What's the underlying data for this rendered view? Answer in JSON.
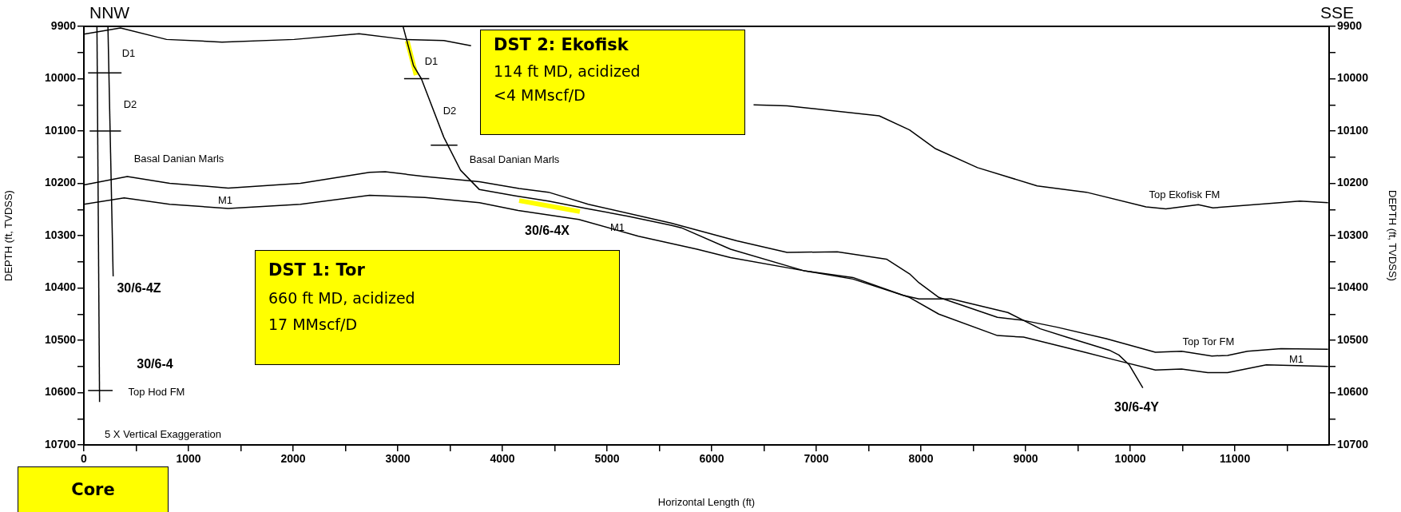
{
  "chart_data": {
    "type": "line",
    "xlabel": "Horizontal Length (ft)",
    "ylabel": "DEPTH (ft, TVDSS)",
    "y2label": "DEPTH (ft, TVDSS)",
    "xlim": [
      0,
      11900
    ],
    "ylim": [
      10700,
      9900
    ],
    "y2lim": [
      10700,
      9900
    ],
    "xticks": [
      0,
      {
        "value": 500,
        "label": null
      },
      1000,
      {
        "value": 1500,
        "label": null
      },
      2000,
      {
        "value": 2500,
        "label": null
      },
      3000,
      {
        "value": 3500,
        "label": null
      },
      4000,
      {
        "value": 4500,
        "label": null
      },
      5000,
      {
        "value": 5500,
        "label": null
      },
      6000,
      {
        "value": 6500,
        "label": null
      },
      7000,
      {
        "value": 7500,
        "label": null
      },
      8000,
      {
        "value": 8500,
        "label": null
      },
      9000,
      {
        "value": 9500,
        "label": null
      },
      10000,
      {
        "value": 10500,
        "label": null
      },
      11000,
      {
        "value": 11500,
        "label": null
      }
    ],
    "yticks": [
      9900,
      {
        "value": 9950,
        "label": null
      },
      10000,
      {
        "value": 10050,
        "label": null
      },
      10100,
      {
        "value": 10150,
        "label": null
      },
      10200,
      {
        "value": 10250,
        "label": null
      },
      10300,
      {
        "value": 10350,
        "label": null
      },
      10400,
      {
        "value": 10450,
        "label": null
      },
      10500,
      {
        "value": 10550,
        "label": null
      },
      10600,
      {
        "value": 10650,
        "label": null
      },
      10700
    ],
    "y2ticks": [
      9900,
      {
        "value": 9950,
        "label": null
      },
      10000,
      {
        "value": 10050,
        "label": null
      },
      10100,
      {
        "value": 10150,
        "label": null
      },
      10200,
      {
        "value": 10250,
        "label": null
      },
      10300,
      {
        "value": 10350,
        "label": null
      },
      10400,
      {
        "value": 10450,
        "label": null
      },
      10500,
      {
        "value": 10550,
        "label": null
      },
      10600,
      {
        "value": 10650,
        "label": null
      },
      10700
    ],
    "series": [
      {
        "color": "#000000",
        "x": [
          0,
          350,
          790,
          1320,
          2010,
          2630,
          3070,
          3440,
          3700,
          5000,
          6400,
          6720,
          7600,
          7890,
          8140,
          8540,
          9110,
          9580,
          10150,
          10340,
          10650,
          10790,
          11620,
          11890
        ],
        "values": [
          9915,
          9903,
          9925,
          9930,
          9925,
          9914,
          9925,
          9927,
          9937,
          null,
          10050,
          10052,
          10071,
          10098,
          10134,
          10170,
          10205,
          10217,
          10245,
          10249,
          10241,
          10247,
          10234,
          10237
        ]
      },
      {
        "color": "#000000",
        "x": [
          0,
          415,
          820,
          1380,
          2070,
          2730,
          2880,
          3260,
          3780,
          4160,
          4440,
          4820,
          5610,
          6240,
          6720,
          7200,
          7670,
          7890,
          7980,
          8170,
          8730,
          8980,
          9300,
          9770,
          10240,
          10490,
          10780,
          10930,
          11120,
          11440,
          11890
        ],
        "values": [
          10203,
          10187,
          10200,
          10209,
          10200,
          10179,
          10178,
          10187,
          10197,
          10210,
          10217,
          10240,
          10276,
          10310,
          10332,
          10331,
          10345,
          10373,
          10390,
          10418,
          10456,
          10462,
          10475,
          10497,
          10523,
          10521,
          10530,
          10529,
          10521,
          10516,
          10517
        ]
      },
      {
        "color": "#000000",
        "x": [
          0,
          385,
          820,
          1380,
          2070,
          2730,
          3260,
          3780,
          4150,
          4730,
          5300,
          5860,
          6180,
          6880,
          7350,
          7890,
          8170,
          8730,
          8980,
          9550,
          9860,
          10240,
          10490,
          10740,
          10930,
          11300,
          11890
        ],
        "values": [
          10240,
          10228,
          10240,
          10248,
          10240,
          10223,
          10227,
          10237,
          10252,
          10269,
          10301,
          10326,
          10342,
          10367,
          10383,
          10418,
          10450,
          10491,
          10494,
          10522,
          10538,
          10557,
          10555,
          10562,
          10562,
          10547,
          10550
        ]
      },
      {
        "color": "#000000",
        "x": [
          3050,
          3150,
          3225,
          3440,
          3600,
          3780,
          4125,
          4440,
          4800,
          5200,
          5610,
          5710,
          6180,
          6880,
          7350,
          7830,
          7980,
          8290,
          8830,
          9140,
          9390,
          9800,
          9890,
          9990,
          10120
        ],
        "values": [
          9900,
          9975,
          10000,
          10112,
          10175,
          10212,
          10224,
          10234,
          10248,
          10263,
          10280,
          10285,
          10326,
          10367,
          10380,
          10414,
          10421,
          10421,
          10447,
          10478,
          10494,
          10519,
          10528,
          10547,
          10591
        ]
      },
      {
        "color": "#000000",
        "x": [
          125,
          150
        ],
        "values": [
          9900,
          10618
        ]
      },
      {
        "color": "#000000",
        "x": [
          230,
          280
        ],
        "values": [
          9900,
          10378
        ]
      },
      {
        "color": "#000000",
        "x": [
          40,
          360
        ],
        "values": [
          9989,
          9989
        ]
      },
      {
        "color": "#000000",
        "x": [
          55,
          355
        ],
        "values": [
          10100,
          10100
        ]
      },
      {
        "color": "#000000",
        "x": [
          40,
          275
        ],
        "values": [
          10596,
          10596
        ]
      },
      {
        "color": "#000000",
        "x": [
          3060,
          3300
        ],
        "values": [
          10000,
          10000
        ]
      },
      {
        "color": "#000000",
        "x": [
          3315,
          3570
        ],
        "values": [
          10127,
          10127
        ]
      },
      {
        "color": "#ffff00",
        "x": [
          3090,
          3175
        ],
        "values": [
          9928,
          9993
        ]
      },
      {
        "color": "#ffff00",
        "x": [
          4160,
          4740
        ],
        "values": [
          10233,
          10254
        ]
      }
    ],
    "annotations": [
      "NNW",
      "SSE",
      "DST 2: Ekofisk\n114 ft MD, acidized\n<4 MMscf/D",
      "DST 1: Tor\n660 ft MD, acidized\n17 MMscf/D",
      "Core",
      "D1",
      "D2",
      "Basal Danian Marls",
      "M1",
      "30/6-4Z",
      "30/6-4",
      "Top Hod FM",
      "5 X Vertical Exaggeration",
      "D1",
      "D2",
      "Basal Danian Marls",
      "30/6-4X",
      "M1",
      "Top Ekofisk FM",
      "Top Tor FM",
      "M1",
      "30/6-4Y"
    ]
  }
}
